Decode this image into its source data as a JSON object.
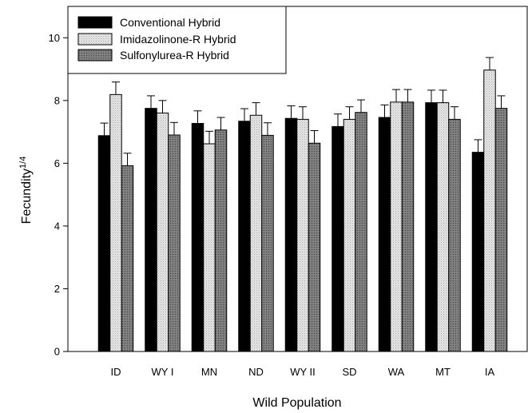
{
  "chart_data": {
    "type": "bar",
    "xlabel": "Wild Population",
    "ylabel_main": "Fecundity",
    "ylabel_sup": "1/4",
    "ylim": [
      0,
      11
    ],
    "yticks": [
      0,
      2,
      4,
      6,
      8,
      10
    ],
    "legend_position": "top-left",
    "categories": [
      "ID",
      "WY I",
      "MN",
      "ND",
      "WY II",
      "SD",
      "WA",
      "MT",
      "IA"
    ],
    "series": [
      {
        "name": "Conventional Hybrid",
        "color": "#000000",
        "values": [
          6.88,
          7.75,
          7.27,
          7.34,
          7.43,
          7.17,
          7.46,
          7.93,
          6.35
        ],
        "errors": [
          0.4,
          0.4,
          0.4,
          0.4,
          0.4,
          0.4,
          0.4,
          0.4,
          0.4
        ]
      },
      {
        "name": "Imidazolinone-R Hybrid",
        "color": "#d9d9d9",
        "values": [
          8.19,
          7.6,
          6.62,
          7.53,
          7.4,
          7.4,
          7.95,
          7.93,
          8.97
        ],
        "errors": [
          0.4,
          0.4,
          0.4,
          0.4,
          0.4,
          0.4,
          0.4,
          0.4,
          0.4
        ]
      },
      {
        "name": "Sulfonylurea-R Hybrid",
        "color": "#808080",
        "values": [
          5.92,
          6.9,
          7.06,
          6.89,
          6.64,
          7.62,
          7.95,
          7.4,
          7.75
        ],
        "errors": [
          0.4,
          0.4,
          0.4,
          0.4,
          0.4,
          0.4,
          0.4,
          0.4,
          0.4
        ]
      }
    ]
  }
}
